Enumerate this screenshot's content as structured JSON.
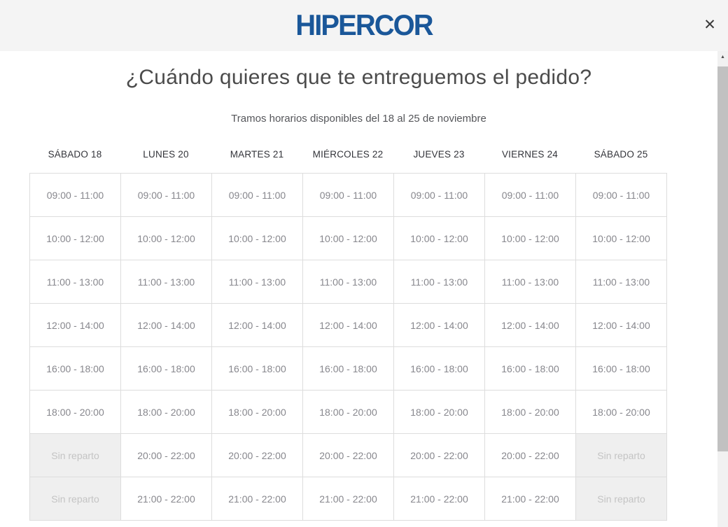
{
  "header": {
    "logo": "HIPERCOR",
    "close_glyph": "✕"
  },
  "modal": {
    "title": "¿Cuándo quieres que te entreguemos el pedido?",
    "subtitle": "Tramos horarios disponibles del 18 al 25 de noviembre"
  },
  "schedule": {
    "days": [
      "SÁBADO 18",
      "LUNES 20",
      "MARTES 21",
      "MIÉRCOLES 22",
      "JUEVES 23",
      "VIERNES 24",
      "SÁBADO 25"
    ],
    "no_delivery_label": "Sin reparto",
    "rows": [
      [
        "09:00 - 11:00",
        "09:00 - 11:00",
        "09:00 - 11:00",
        "09:00 - 11:00",
        "09:00 - 11:00",
        "09:00 - 11:00",
        "09:00 - 11:00"
      ],
      [
        "10:00 - 12:00",
        "10:00 - 12:00",
        "10:00 - 12:00",
        "10:00 - 12:00",
        "10:00 - 12:00",
        "10:00 - 12:00",
        "10:00 - 12:00"
      ],
      [
        "11:00 - 13:00",
        "11:00 - 13:00",
        "11:00 - 13:00",
        "11:00 - 13:00",
        "11:00 - 13:00",
        "11:00 - 13:00",
        "11:00 - 13:00"
      ],
      [
        "12:00 - 14:00",
        "12:00 - 14:00",
        "12:00 - 14:00",
        "12:00 - 14:00",
        "12:00 - 14:00",
        "12:00 - 14:00",
        "12:00 - 14:00"
      ],
      [
        "16:00 - 18:00",
        "16:00 - 18:00",
        "16:00 - 18:00",
        "16:00 - 18:00",
        "16:00 - 18:00",
        "16:00 - 18:00",
        "16:00 - 18:00"
      ],
      [
        "18:00 - 20:00",
        "18:00 - 20:00",
        "18:00 - 20:00",
        "18:00 - 20:00",
        "18:00 - 20:00",
        "18:00 - 20:00",
        "18:00 - 20:00"
      ],
      [
        "Sin reparto",
        "20:00 - 22:00",
        "20:00 - 22:00",
        "20:00 - 22:00",
        "20:00 - 22:00",
        "20:00 - 22:00",
        "Sin reparto"
      ],
      [
        "Sin reparto",
        "21:00 - 22:00",
        "21:00 - 22:00",
        "21:00 - 22:00",
        "21:00 - 22:00",
        "21:00 - 22:00",
        "Sin reparto"
      ]
    ]
  },
  "scrollbar": {
    "up_glyph": "▲"
  },
  "colors": {
    "brand_blue": "#1a5799",
    "header_bg": "#f4f4f4",
    "cell_border": "#dddddd",
    "cell_text": "#87878d",
    "unavailable_bg": "#efefef",
    "unavailable_text": "#c4c4c4"
  }
}
